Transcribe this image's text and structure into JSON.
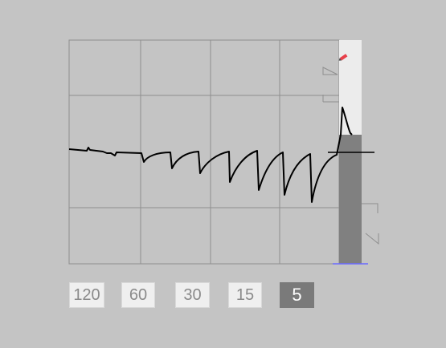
{
  "colors": {
    "background": "#c4c4c4",
    "plot_background": "#c4c4c4",
    "grid": "#8e8e8e",
    "trace": "#000000",
    "side_panel": "#ececec",
    "level_bar": "#808080",
    "baseline": "#6a6aff",
    "button_bg": "#efefef",
    "button_selected_bg": "#7a7a7a",
    "button_text": "#8a8a8a",
    "button_selected_text": "#ffffff"
  },
  "icons": {
    "top_indicator": "pencil-icon"
  },
  "time_buttons": [
    {
      "label": "120",
      "selected": false
    },
    {
      "label": "60",
      "selected": false
    },
    {
      "label": "30",
      "selected": false
    },
    {
      "label": "15",
      "selected": false
    },
    {
      "label": "5",
      "selected": true
    }
  ]
}
